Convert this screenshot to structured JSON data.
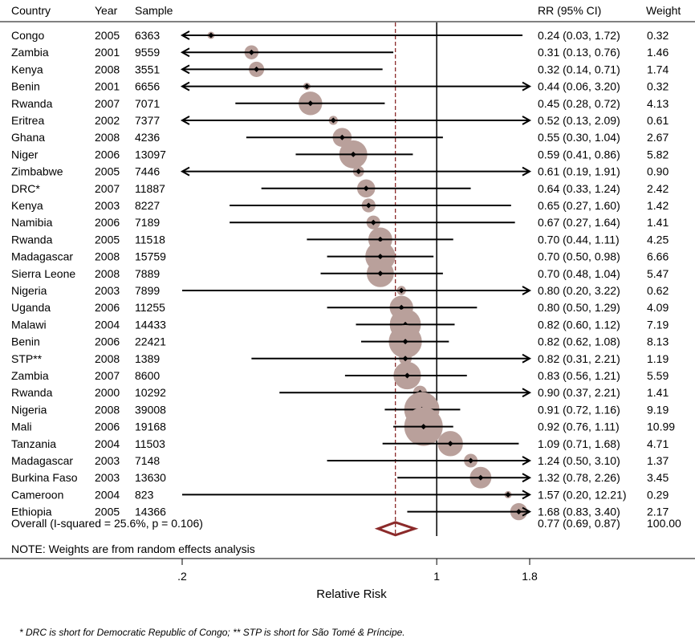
{
  "chart_data": {
    "type": "forest",
    "headers": {
      "country": "Country",
      "year": "Year",
      "sample": "Sample",
      "rr": "RR (95% CI)",
      "weight": "Weight"
    },
    "xlabel": "Relative Risk",
    "x_scale": "log",
    "xlim": [
      0.2,
      1.8
    ],
    "xticks": [
      ".2",
      "1",
      "1.8"
    ],
    "xtick_values": [
      0.2,
      1,
      1.8
    ],
    "reference_line": 1,
    "overall_line": 0.77,
    "studies": [
      {
        "country": "Congo",
        "year": "2005",
        "sample": "6363",
        "rr": 0.24,
        "lo": 0.03,
        "hi": 1.72,
        "rr_text": "0.24 (0.03, 1.72)",
        "weight": "0.32"
      },
      {
        "country": "Zambia",
        "year": "2001",
        "sample": "9559",
        "rr": 0.31,
        "lo": 0.13,
        "hi": 0.76,
        "rr_text": "0.31 (0.13, 0.76)",
        "weight": "1.46"
      },
      {
        "country": "Kenya",
        "year": "2008",
        "sample": "3551",
        "rr": 0.32,
        "lo": 0.14,
        "hi": 0.71,
        "rr_text": "0.32 (0.14, 0.71)",
        "weight": "1.74"
      },
      {
        "country": "Benin",
        "year": "2001",
        "sample": "6656",
        "rr": 0.44,
        "lo": 0.06,
        "hi": 3.2,
        "rr_text": "0.44 (0.06, 3.20)",
        "weight": "0.32"
      },
      {
        "country": "Rwanda",
        "year": "2007",
        "sample": "7071",
        "rr": 0.45,
        "lo": 0.28,
        "hi": 0.72,
        "rr_text": "0.45 (0.28, 0.72)",
        "weight": "4.13"
      },
      {
        "country": "Eritrea",
        "year": "2002",
        "sample": "7377",
        "rr": 0.52,
        "lo": 0.13,
        "hi": 2.09,
        "rr_text": "0.52 (0.13, 2.09)",
        "weight": "0.61"
      },
      {
        "country": "Ghana",
        "year": "2008",
        "sample": "4236",
        "rr": 0.55,
        "lo": 0.3,
        "hi": 1.04,
        "rr_text": "0.55 (0.30, 1.04)",
        "weight": "2.67"
      },
      {
        "country": "Niger",
        "year": "2006",
        "sample": "13097",
        "rr": 0.59,
        "lo": 0.41,
        "hi": 0.86,
        "rr_text": "0.59 (0.41, 0.86)",
        "weight": "5.82"
      },
      {
        "country": "Zimbabwe",
        "year": "2005",
        "sample": "7446",
        "rr": 0.61,
        "lo": 0.19,
        "hi": 1.91,
        "rr_text": "0.61 (0.19, 1.91)",
        "weight": "0.90"
      },
      {
        "country": "DRC*",
        "year": "2007",
        "sample": "11887",
        "rr": 0.64,
        "lo": 0.33,
        "hi": 1.24,
        "rr_text": "0.64 (0.33, 1.24)",
        "weight": "2.42"
      },
      {
        "country": "Kenya",
        "year": "2003",
        "sample": "8227",
        "rr": 0.65,
        "lo": 0.27,
        "hi": 1.6,
        "rr_text": "0.65 (0.27, 1.60)",
        "weight": "1.42"
      },
      {
        "country": "Namibia",
        "year": "2006",
        "sample": "7189",
        "rr": 0.67,
        "lo": 0.27,
        "hi": 1.64,
        "rr_text": "0.67 (0.27, 1.64)",
        "weight": "1.41"
      },
      {
        "country": "Rwanda",
        "year": "2005",
        "sample": "11518",
        "rr": 0.7,
        "lo": 0.44,
        "hi": 1.11,
        "rr_text": "0.70 (0.44, 1.11)",
        "weight": "4.25"
      },
      {
        "country": "Madagascar",
        "year": "2008",
        "sample": "15759",
        "rr": 0.7,
        "lo": 0.5,
        "hi": 0.98,
        "rr_text": "0.70 (0.50, 0.98)",
        "weight": "6.66"
      },
      {
        "country": "Sierra Leone",
        "year": "2008",
        "sample": "7889",
        "rr": 0.7,
        "lo": 0.48,
        "hi": 1.04,
        "rr_text": "0.70 (0.48, 1.04)",
        "weight": "5.47"
      },
      {
        "country": "Nigeria",
        "year": "2003",
        "sample": "7899",
        "rr": 0.8,
        "lo": 0.2,
        "hi": 3.22,
        "rr_text": "0.80 (0.20, 3.22)",
        "weight": "0.62"
      },
      {
        "country": "Uganda",
        "year": "2006",
        "sample": "11255",
        "rr": 0.8,
        "lo": 0.5,
        "hi": 1.29,
        "rr_text": "0.80 (0.50, 1.29)",
        "weight": "4.09"
      },
      {
        "country": "Malawi",
        "year": "2004",
        "sample": "14433",
        "rr": 0.82,
        "lo": 0.6,
        "hi": 1.12,
        "rr_text": "0.82 (0.60, 1.12)",
        "weight": "7.19"
      },
      {
        "country": "Benin",
        "year": "2006",
        "sample": "22421",
        "rr": 0.82,
        "lo": 0.62,
        "hi": 1.08,
        "rr_text": "0.82 (0.62, 1.08)",
        "weight": "8.13"
      },
      {
        "country": "STP**",
        "year": "2008",
        "sample": "1389",
        "rr": 0.82,
        "lo": 0.31,
        "hi": 2.21,
        "rr_text": "0.82 (0.31, 2.21)",
        "weight": "1.19"
      },
      {
        "country": "Zambia",
        "year": "2007",
        "sample": "8600",
        "rr": 0.83,
        "lo": 0.56,
        "hi": 1.21,
        "rr_text": "0.83 (0.56, 1.21)",
        "weight": "5.59"
      },
      {
        "country": "Rwanda",
        "year": "2000",
        "sample": "10292",
        "rr": 0.9,
        "lo": 0.37,
        "hi": 2.21,
        "rr_text": "0.90 (0.37, 2.21)",
        "weight": "1.41"
      },
      {
        "country": "Nigeria",
        "year": "2008",
        "sample": "39008",
        "rr": 0.91,
        "lo": 0.72,
        "hi": 1.16,
        "rr_text": "0.91 (0.72, 1.16)",
        "weight": "9.19"
      },
      {
        "country": "Mali",
        "year": "2006",
        "sample": "19168",
        "rr": 0.92,
        "lo": 0.76,
        "hi": 1.11,
        "rr_text": "0.92 (0.76, 1.11)",
        "weight": "10.99"
      },
      {
        "country": "Tanzania",
        "year": "2004",
        "sample": "11503",
        "rr": 1.09,
        "lo": 0.71,
        "hi": 1.68,
        "rr_text": "1.09 (0.71, 1.68)",
        "weight": "4.71"
      },
      {
        "country": "Madagascar",
        "year": "2003",
        "sample": "7148",
        "rr": 1.24,
        "lo": 0.5,
        "hi": 3.1,
        "rr_text": "1.24 (0.50, 3.10)",
        "weight": "1.37"
      },
      {
        "country": "Burkina Faso",
        "year": "2003",
        "sample": "13630",
        "rr": 1.32,
        "lo": 0.78,
        "hi": 2.26,
        "rr_text": "1.32 (0.78, 2.26)",
        "weight": "3.45"
      },
      {
        "country": "Cameroon",
        "year": "2004",
        "sample": "823",
        "rr": 1.57,
        "lo": 0.2,
        "hi": 12.21,
        "rr_text": "1.57 (0.20, 12.21)",
        "weight": "0.29"
      },
      {
        "country": "Ethiopia",
        "year": "2005",
        "sample": "14366",
        "rr": 1.68,
        "lo": 0.83,
        "hi": 3.4,
        "rr_text": "1.68 (0.83, 3.40)",
        "weight": "2.17"
      }
    ],
    "overall": {
      "label": "Overall  (I-squared = 25.6%, p = 0.106)",
      "rr": 0.77,
      "lo": 0.69,
      "hi": 0.87,
      "rr_text": "0.77 (0.69, 0.87)",
      "weight": "100.00"
    },
    "note": "NOTE: Weights are from random effects analysis"
  },
  "footnote": "* DRC is short for Democratic Republic of Congo; ** STP is short for São Tomé & Príncipe.",
  "colors": {
    "box": "#b9a09b",
    "overall_diamond": "#8b2a2a",
    "overall_line": "#8b2a2a",
    "ci_line": "#000000"
  }
}
